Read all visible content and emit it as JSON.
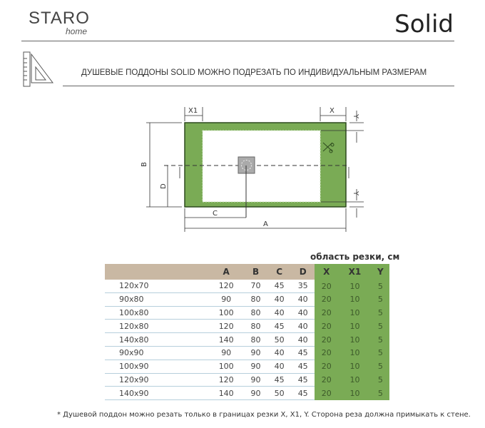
{
  "header": {
    "logo_text": "STARO",
    "logo_sub": "home",
    "title": "Solid"
  },
  "subtitle": "ДУШЕВЫЕ ПОДДОНЫ SOLID МОЖНО ПОДРЕЗАТЬ ПО ИНДИВИДУАЛЬНЫМ РАЗМЕРАМ",
  "diagram": {
    "labels": {
      "x1": "X1",
      "x": "X",
      "y_top": "Y",
      "y_bottom": "Y",
      "b": "B",
      "d": "D",
      "c": "C",
      "a": "A"
    },
    "colors": {
      "green": "#7aab55",
      "border": "#2d4a1e"
    }
  },
  "table": {
    "cut_area_label": "область резки, см",
    "columns": [
      "",
      "A",
      "B",
      "C",
      "D",
      "X",
      "X1",
      "Y"
    ],
    "rows": [
      [
        "120x70",
        "120",
        "70",
        "45",
        "35",
        "20",
        "10",
        "5"
      ],
      [
        "90x80",
        "90",
        "80",
        "40",
        "40",
        "20",
        "10",
        "5"
      ],
      [
        "100x80",
        "100",
        "80",
        "40",
        "40",
        "20",
        "10",
        "5"
      ],
      [
        "120x80",
        "120",
        "80",
        "45",
        "40",
        "20",
        "10",
        "5"
      ],
      [
        "140x80",
        "140",
        "80",
        "50",
        "40",
        "20",
        "10",
        "5"
      ],
      [
        "90x90",
        "90",
        "90",
        "40",
        "45",
        "20",
        "10",
        "5"
      ],
      [
        "100x90",
        "100",
        "90",
        "40",
        "45",
        "20",
        "10",
        "5"
      ],
      [
        "120x90",
        "120",
        "90",
        "45",
        "45",
        "20",
        "10",
        "5"
      ],
      [
        "140x90",
        "140",
        "90",
        "50",
        "45",
        "20",
        "10",
        "5"
      ]
    ],
    "colors": {
      "header": "#c9b8a3",
      "cut_area": "#7aab55"
    }
  },
  "footnote": "*    Душевой поддон можно резать только в границах резки X, X1, Y. Сторона реза должна примыкать к стене."
}
